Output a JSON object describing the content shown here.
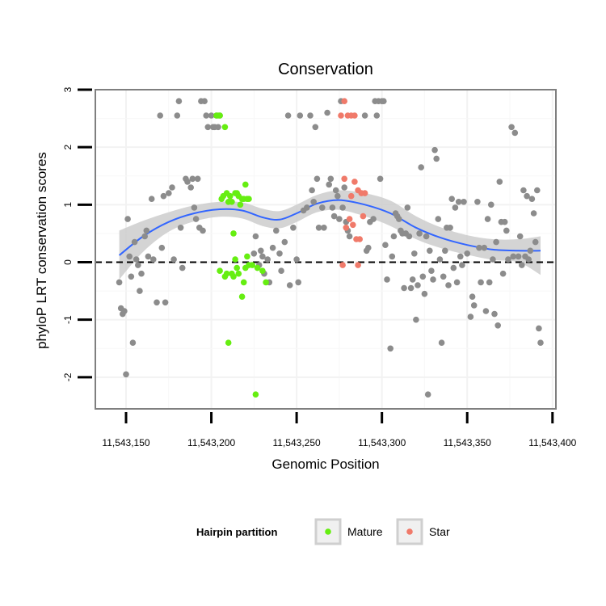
{
  "chart_data": {
    "type": "scatter",
    "title": "Conservation",
    "xlabel": "Genomic Position",
    "ylabel": "phyloP LRT conservation scores",
    "xlim": [
      11543132,
      11543402
    ],
    "ylim": [
      -2.55,
      3.0
    ],
    "xticks": [
      11543150,
      11543200,
      11543250,
      11543300,
      11543350,
      11543400
    ],
    "xtick_labels": [
      "11,543,150",
      "11,543,200",
      "11,543,250",
      "11,543,300",
      "11,543,350",
      "11,543,400"
    ],
    "yticks": [
      -2,
      -1,
      0,
      1,
      2,
      3
    ],
    "ytick_labels": [
      "-2",
      "-1",
      "0",
      "1",
      "2",
      "3"
    ],
    "grid": true,
    "reference_line": {
      "y": 0,
      "style": "dashed"
    },
    "legend": {
      "title": "Hairpin partition",
      "position": "bottom",
      "entries": [
        {
          "label": "Mature",
          "color": "#66ee11"
        },
        {
          "label": "Star",
          "color": "#f07a6a"
        }
      ]
    },
    "colors": {
      "other": "#8c8c8c",
      "mature": "#66ee11",
      "star": "#f07a6a",
      "smooth": "#3366ff",
      "ribbon": "#cccccc"
    },
    "smooth": {
      "x": [
        11543146,
        11543160,
        11543175,
        11543190,
        11543205,
        11543218,
        11543230,
        11543240,
        11543250,
        11543262,
        11543275,
        11543290,
        11543305,
        11543320,
        11543335,
        11543350,
        11543365,
        11543380,
        11543393
      ],
      "y": [
        0.12,
        0.45,
        0.7,
        0.85,
        0.92,
        0.9,
        0.78,
        0.74,
        0.85,
        1.02,
        1.08,
        1.0,
        0.85,
        0.6,
        0.42,
        0.3,
        0.22,
        0.2,
        0.2
      ],
      "upper": [
        0.55,
        0.72,
        0.87,
        0.99,
        1.05,
        1.04,
        0.93,
        0.89,
        1.0,
        1.17,
        1.25,
        1.2,
        1.07,
        0.8,
        0.6,
        0.47,
        0.4,
        0.4,
        0.45
      ],
      "lower": [
        -0.3,
        0.18,
        0.53,
        0.71,
        0.79,
        0.76,
        0.63,
        0.59,
        0.7,
        0.87,
        0.91,
        0.8,
        0.63,
        0.4,
        0.24,
        0.13,
        0.04,
        0.0,
        -0.22
      ]
    },
    "series": [
      {
        "name": "other",
        "points": [
          [
            11543146,
            -0.35
          ],
          [
            11543147,
            -0.8
          ],
          [
            11543148,
            -0.9
          ],
          [
            11543149,
            -0.85
          ],
          [
            11543150,
            -1.95
          ],
          [
            11543151,
            0.75
          ],
          [
            11543152,
            0.1
          ],
          [
            11543153,
            -0.25
          ],
          [
            11543154,
            -1.4
          ],
          [
            11543155,
            0.35
          ],
          [
            11543156,
            0.05
          ],
          [
            11543157,
            -0.05
          ],
          [
            11543158,
            -0.5
          ],
          [
            11543159,
            -0.2
          ],
          [
            11543161,
            0.45
          ],
          [
            11543162,
            0.55
          ],
          [
            11543163,
            0.1
          ],
          [
            11543165,
            1.1
          ],
          [
            11543166,
            0.05
          ],
          [
            11543168,
            -0.7
          ],
          [
            11543170,
            2.55
          ],
          [
            11543171,
            0.25
          ],
          [
            11543172,
            1.15
          ],
          [
            11543173,
            -0.7
          ],
          [
            11543175,
            1.2
          ],
          [
            11543177,
            1.3
          ],
          [
            11543178,
            0.05
          ],
          [
            11543180,
            2.55
          ],
          [
            11543181,
            2.8
          ],
          [
            11543182,
            0.6
          ],
          [
            11543183,
            -0.1
          ],
          [
            11543185,
            1.45
          ],
          [
            11543186,
            1.4
          ],
          [
            11543188,
            1.3
          ],
          [
            11543189,
            1.45
          ],
          [
            11543190,
            0.95
          ],
          [
            11543191,
            0.75
          ],
          [
            11543192,
            1.45
          ],
          [
            11543193,
            0.6
          ],
          [
            11543194,
            2.8
          ],
          [
            11543195,
            0.55
          ],
          [
            11543196,
            2.8
          ],
          [
            11543197,
            2.55
          ],
          [
            11543198,
            2.35
          ],
          [
            11543200,
            2.55
          ],
          [
            11543201,
            2.35
          ],
          [
            11543202,
            2.35
          ],
          [
            11543203,
            2.55
          ],
          [
            11543204,
            2.35
          ],
          [
            11543205,
            2.55
          ],
          [
            11543225,
            0.15
          ],
          [
            11543226,
            0.45
          ],
          [
            11543228,
            -0.05
          ],
          [
            11543229,
            0.2
          ],
          [
            11543230,
            0.1
          ],
          [
            11543231,
            -0.2
          ],
          [
            11543233,
            0.05
          ],
          [
            11543234,
            -0.35
          ],
          [
            11543236,
            0.25
          ],
          [
            11543238,
            0.55
          ],
          [
            11543240,
            0.15
          ],
          [
            11543241,
            -0.15
          ],
          [
            11543243,
            0.35
          ],
          [
            11543245,
            2.55
          ],
          [
            11543246,
            -0.4
          ],
          [
            11543248,
            0.6
          ],
          [
            11543250,
            0.05
          ],
          [
            11543251,
            -0.35
          ],
          [
            11543252,
            2.55
          ],
          [
            11543254,
            0.9
          ],
          [
            11543256,
            0.95
          ],
          [
            11543258,
            2.55
          ],
          [
            11543259,
            1.25
          ],
          [
            11543260,
            1.05
          ],
          [
            11543261,
            2.35
          ],
          [
            11543262,
            1.45
          ],
          [
            11543263,
            0.6
          ],
          [
            11543265,
            0.95
          ],
          [
            11543266,
            0.6
          ],
          [
            11543268,
            2.6
          ],
          [
            11543269,
            1.35
          ],
          [
            11543270,
            1.45
          ],
          [
            11543271,
            0.95
          ],
          [
            11543272,
            0.8
          ],
          [
            11543273,
            1.25
          ],
          [
            11543274,
            1.15
          ],
          [
            11543275,
            0.75
          ],
          [
            11543276,
            2.8
          ],
          [
            11543277,
            0.95
          ],
          [
            11543278,
            1.3
          ],
          [
            11543279,
            0.7
          ],
          [
            11543280,
            0.55
          ],
          [
            11543281,
            0.45
          ],
          [
            11543290,
            2.55
          ],
          [
            11543291,
            0.2
          ],
          [
            11543292,
            0.25
          ],
          [
            11543293,
            0.7
          ],
          [
            11543295,
            0.75
          ],
          [
            11543296,
            2.8
          ],
          [
            11543297,
            2.55
          ],
          [
            11543298,
            2.8
          ],
          [
            11543299,
            1.45
          ],
          [
            11543300,
            2.8
          ],
          [
            11543301,
            2.8
          ],
          [
            11543302,
            0.3
          ],
          [
            11543303,
            -0.3
          ],
          [
            11543305,
            -1.5
          ],
          [
            11543306,
            0.1
          ],
          [
            11543307,
            0.45
          ],
          [
            11543308,
            0.85
          ],
          [
            11543309,
            0.8
          ],
          [
            11543310,
            0.75
          ],
          [
            11543311,
            0.55
          ],
          [
            11543312,
            0.5
          ],
          [
            11543313,
            -0.45
          ],
          [
            11543314,
            0.5
          ],
          [
            11543315,
            0.95
          ],
          [
            11543316,
            0.45
          ],
          [
            11543317,
            -0.45
          ],
          [
            11543318,
            -0.3
          ],
          [
            11543319,
            0.15
          ],
          [
            11543320,
            -1.0
          ],
          [
            11543321,
            -0.4
          ],
          [
            11543322,
            0.5
          ],
          [
            11543323,
            1.65
          ],
          [
            11543324,
            -0.25
          ],
          [
            11543325,
            -0.55
          ],
          [
            11543326,
            0.45
          ],
          [
            11543327,
            -2.3
          ],
          [
            11543328,
            0.2
          ],
          [
            11543329,
            -0.15
          ],
          [
            11543330,
            -0.3
          ],
          [
            11543331,
            1.95
          ],
          [
            11543332,
            1.8
          ],
          [
            11543333,
            0.75
          ],
          [
            11543334,
            0.05
          ],
          [
            11543335,
            -1.4
          ],
          [
            11543336,
            -0.25
          ],
          [
            11543337,
            0.2
          ],
          [
            11543338,
            0.6
          ],
          [
            11543339,
            -0.4
          ],
          [
            11543340,
            0.6
          ],
          [
            11543341,
            1.1
          ],
          [
            11543342,
            -0.1
          ],
          [
            11543343,
            0.95
          ],
          [
            11543344,
            -0.35
          ],
          [
            11543345,
            1.05
          ],
          [
            11543346,
            0.1
          ],
          [
            11543347,
            -0.05
          ],
          [
            11543348,
            1.05
          ],
          [
            11543350,
            0.15
          ],
          [
            11543352,
            -0.95
          ],
          [
            11543353,
            -0.6
          ],
          [
            11543354,
            -0.75
          ],
          [
            11543356,
            1.05
          ],
          [
            11543357,
            0.25
          ],
          [
            11543358,
            -0.35
          ],
          [
            11543360,
            0.25
          ],
          [
            11543361,
            -0.85
          ],
          [
            11543362,
            0.75
          ],
          [
            11543363,
            -0.35
          ],
          [
            11543364,
            1.0
          ],
          [
            11543365,
            0.05
          ],
          [
            11543366,
            -0.9
          ],
          [
            11543367,
            0.35
          ],
          [
            11543368,
            -1.1
          ],
          [
            11543369,
            1.4
          ],
          [
            11543370,
            0.7
          ],
          [
            11543371,
            -0.2
          ],
          [
            11543372,
            0.7
          ],
          [
            11543373,
            0.55
          ],
          [
            11543374,
            0.05
          ],
          [
            11543376,
            2.35
          ],
          [
            11543377,
            0.1
          ],
          [
            11543378,
            2.25
          ],
          [
            11543380,
            0.1
          ],
          [
            11543381,
            0.45
          ],
          [
            11543382,
            -0.05
          ],
          [
            11543383,
            1.25
          ],
          [
            11543384,
            0.1
          ],
          [
            11543385,
            1.15
          ],
          [
            11543386,
            0.05
          ],
          [
            11543387,
            0.2
          ],
          [
            11543388,
            1.1
          ],
          [
            11543389,
            0.85
          ],
          [
            11543390,
            0.35
          ],
          [
            11543391,
            1.25
          ],
          [
            11543392,
            -1.15
          ],
          [
            11543393,
            -1.4
          ]
        ]
      },
      {
        "name": "Mature",
        "points": [
          [
            11543203,
            2.55
          ],
          [
            11543204,
            2.55
          ],
          [
            11543205,
            2.55
          ],
          [
            11543206,
            1.1
          ],
          [
            11543207,
            1.15
          ],
          [
            11543208,
            2.35
          ],
          [
            11543209,
            1.2
          ],
          [
            11543210,
            1.05
          ],
          [
            11543211,
            1.15
          ],
          [
            11543212,
            1.05
          ],
          [
            11543213,
            0.5
          ],
          [
            11543214,
            1.2
          ],
          [
            11543215,
            1.2
          ],
          [
            11543216,
            1.15
          ],
          [
            11543217,
            1.0
          ],
          [
            11543218,
            1.1
          ],
          [
            11543219,
            1.1
          ],
          [
            11543220,
            1.35
          ],
          [
            11543221,
            1.1
          ],
          [
            11543222,
            1.1
          ],
          [
            11543209,
            -0.2
          ],
          [
            11543210,
            -1.4
          ],
          [
            11543212,
            -0.2
          ],
          [
            11543213,
            -0.25
          ],
          [
            11543214,
            0.05
          ],
          [
            11543215,
            -0.1
          ],
          [
            11543216,
            -0.2
          ],
          [
            11543218,
            -0.6
          ],
          [
            11543219,
            -0.35
          ],
          [
            11543220,
            -0.1
          ],
          [
            11543221,
            0.1
          ],
          [
            11543222,
            -0.05
          ],
          [
            11543205,
            -0.15
          ],
          [
            11543208,
            -0.25
          ],
          [
            11543226,
            -2.3
          ],
          [
            11543224,
            -0.05
          ],
          [
            11543227,
            -0.1
          ],
          [
            11543230,
            -0.15
          ],
          [
            11543232,
            -0.35
          ]
        ]
      },
      {
        "name": "Star",
        "points": [
          [
            11543276,
            2.55
          ],
          [
            11543278,
            2.8
          ],
          [
            11543280,
            2.55
          ],
          [
            11543282,
            2.55
          ],
          [
            11543284,
            2.55
          ],
          [
            11543278,
            1.45
          ],
          [
            11543282,
            1.15
          ],
          [
            11543284,
            1.4
          ],
          [
            11543286,
            1.25
          ],
          [
            11543288,
            1.2
          ],
          [
            11543290,
            1.2
          ],
          [
            11543279,
            0.6
          ],
          [
            11543281,
            0.75
          ],
          [
            11543283,
            0.65
          ],
          [
            11543285,
            0.4
          ],
          [
            11543287,
            0.4
          ],
          [
            11543289,
            0.8
          ],
          [
            11543277,
            -0.05
          ],
          [
            11543286,
            -0.05
          ]
        ]
      }
    ]
  }
}
